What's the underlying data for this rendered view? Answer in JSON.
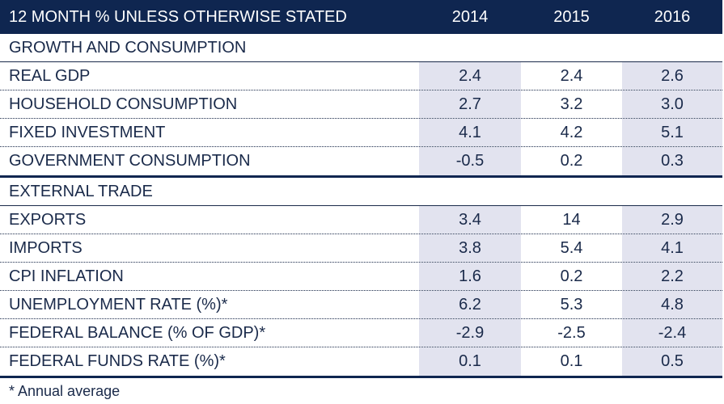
{
  "header": {
    "label": "12 MONTH % UNLESS OTHERWISE STATED",
    "years": [
      "2014",
      "2015",
      "2016"
    ]
  },
  "sections": [
    {
      "title": "GROWTH AND CONSUMPTION",
      "rows": [
        {
          "label": "REAL GDP",
          "values": [
            "2.4",
            "2.4",
            "2.6"
          ]
        },
        {
          "label": "HOUSEHOLD CONSUMPTION",
          "values": [
            "2.7",
            "3.2",
            "3.0"
          ]
        },
        {
          "label": "FIXED INVESTMENT",
          "values": [
            "4.1",
            "4.2",
            "5.1"
          ]
        },
        {
          "label": "GOVERNMENT CONSUMPTION",
          "values": [
            "-0.5",
            "0.2",
            "0.3"
          ]
        }
      ]
    },
    {
      "title": "EXTERNAL TRADE",
      "rows": [
        {
          "label": "EXPORTS",
          "values": [
            "3.4",
            "14",
            "2.9"
          ]
        },
        {
          "label": "IMPORTS",
          "values": [
            "3.8",
            "5.4",
            "4.1"
          ]
        },
        {
          "label": "CPI INFLATION",
          "values": [
            "1.6",
            "0.2",
            "2.2"
          ]
        },
        {
          "label": "UNEMPLOYMENT RATE (%)*",
          "values": [
            "6.2",
            "5.3",
            "4.8"
          ]
        },
        {
          "label": "FEDERAL BALANCE (% OF GDP)*",
          "values": [
            "-2.9",
            "-2.5",
            "-2.4"
          ]
        },
        {
          "label": "FEDERAL FUNDS RATE (%)*",
          "values": [
            "0.1",
            "0.1",
            "0.5"
          ]
        }
      ]
    }
  ],
  "footnote": "* Annual average",
  "colors": {
    "header_bg": "#0f2650",
    "shade": "#e2e3ef",
    "text": "#1a2a4a"
  }
}
